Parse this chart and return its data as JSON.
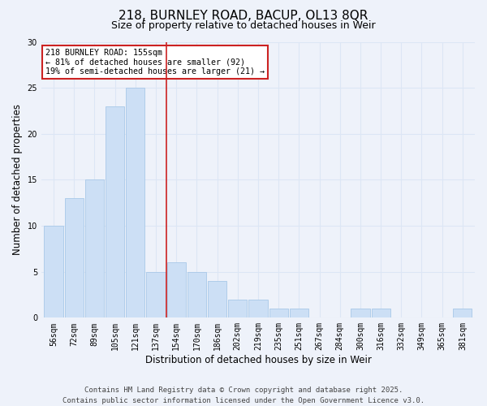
{
  "title_line1": "218, BURNLEY ROAD, BACUP, OL13 8QR",
  "title_line2": "Size of property relative to detached houses in Weir",
  "xlabel": "Distribution of detached houses by size in Weir",
  "ylabel": "Number of detached properties",
  "categories": [
    "56sqm",
    "72sqm",
    "89sqm",
    "105sqm",
    "121sqm",
    "137sqm",
    "154sqm",
    "170sqm",
    "186sqm",
    "202sqm",
    "219sqm",
    "235sqm",
    "251sqm",
    "267sqm",
    "284sqm",
    "300sqm",
    "316sqm",
    "332sqm",
    "349sqm",
    "365sqm",
    "381sqm"
  ],
  "values": [
    10,
    13,
    15,
    23,
    25,
    5,
    6,
    5,
    4,
    2,
    2,
    1,
    1,
    0,
    0,
    1,
    1,
    0,
    0,
    0,
    1
  ],
  "bar_color": "#ccdff5",
  "bar_edge_color": "#a8c8e8",
  "vline_x": 5.5,
  "vline_color": "#cc2222",
  "annotation_text_line1": "218 BURNLEY ROAD: 155sqm",
  "annotation_text_line2": "← 81% of detached houses are smaller (92)",
  "annotation_text_line3": "19% of semi-detached houses are larger (21) →",
  "annotation_box_facecolor": "#ffffff",
  "annotation_box_edgecolor": "#cc2222",
  "ylim": [
    0,
    30
  ],
  "yticks": [
    0,
    5,
    10,
    15,
    20,
    25,
    30
  ],
  "footer_line1": "Contains HM Land Registry data © Crown copyright and database right 2025.",
  "footer_line2": "Contains public sector information licensed under the Open Government Licence v3.0.",
  "background_color": "#eef2fa",
  "grid_color": "#dce6f5",
  "title_fontsize": 11,
  "subtitle_fontsize": 9,
  "axis_label_fontsize": 8.5,
  "tick_fontsize": 7,
  "footer_fontsize": 6.5
}
